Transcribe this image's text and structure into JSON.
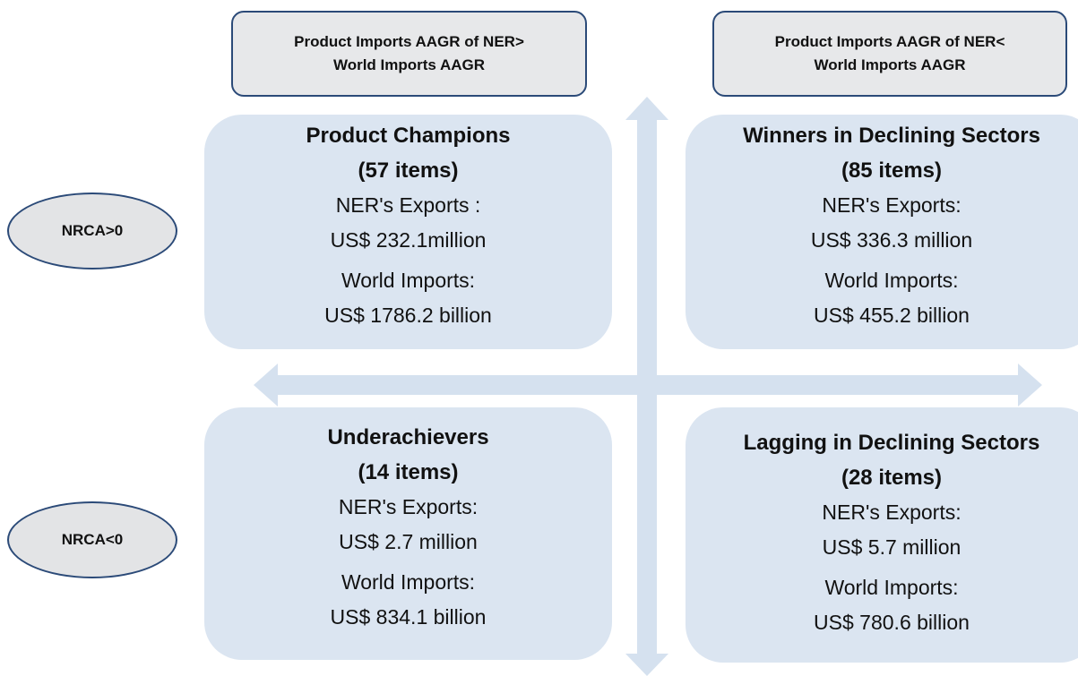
{
  "columns": [
    {
      "lines": [
        "Product Imports AAGR of NER>",
        "World Imports AAGR"
      ]
    },
    {
      "lines": [
        "Product Imports AAGR of NER<",
        "World Imports AAGR"
      ]
    }
  ],
  "rows": [
    {
      "label": "NRCA>0"
    },
    {
      "label": "NRCA<0"
    }
  ],
  "quadrants": [
    {
      "title": "Product Champions",
      "count": "(57 items)",
      "exports_label": "NER's Exports :",
      "exports_value": "US$ 232.1million",
      "imports_label": "World Imports:",
      "imports_value": "US$ 1786.2 billion"
    },
    {
      "title": "Winners in Declining Sectors",
      "count": "(85 items)",
      "exports_label": "NER's Exports:",
      "exports_value": "US$ 336.3 million",
      "imports_label": "World Imports:",
      "imports_value": "US$ 455.2 billion"
    },
    {
      "title": "Underachievers",
      "count": "(14 items)",
      "exports_label": "NER's Exports:",
      "exports_value": "US$ 2.7 million",
      "imports_label": "World Imports:",
      "imports_value": "US$ 834.1 billion"
    },
    {
      "title": "Lagging in Declining Sectors",
      "count": "(28 items)",
      "exports_label": "NER's Exports:",
      "exports_value": "US$ 5.7 million",
      "imports_label": "World Imports:",
      "imports_value": "US$ 780.6 billion"
    }
  ]
}
